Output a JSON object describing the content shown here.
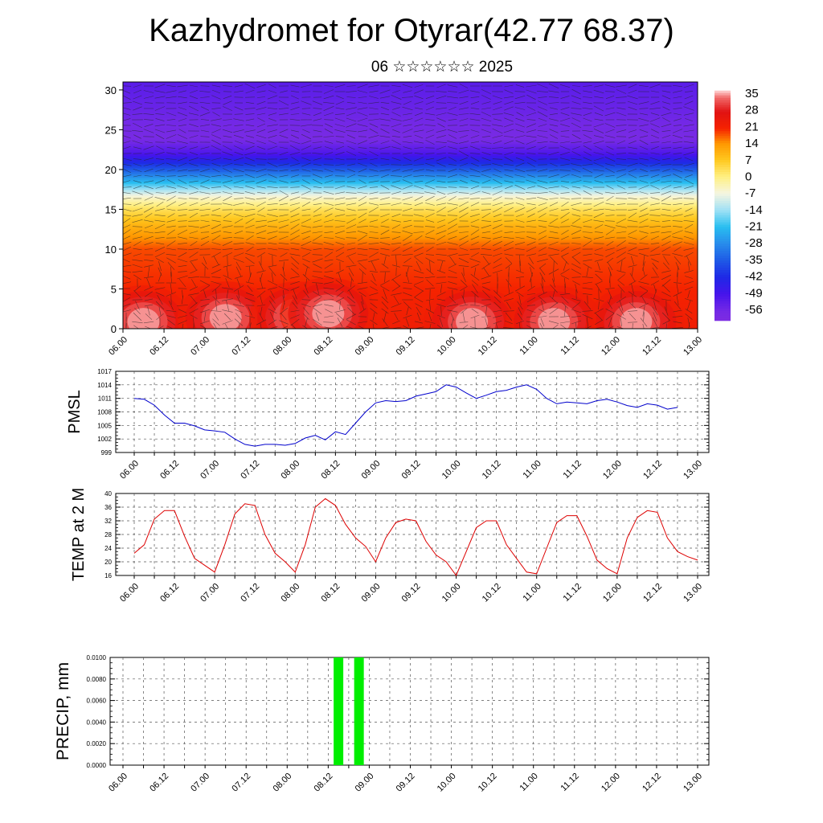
{
  "header": {
    "title": "Kazhydromet for Otyrar(42.77 68.37)",
    "subtitle": "06 ☆☆☆☆☆☆ 2025"
  },
  "colors": {
    "pmsl_line": "#0000cc",
    "temp_line": "#dd0000",
    "precip_bar": "#00ee00"
  },
  "chart_data": [
    {
      "type": "heatmap",
      "title": "",
      "xlabel": "",
      "ylabel": "",
      "x_ticks": [
        "06.00",
        "06.12",
        "07.00",
        "07.12",
        "08.00",
        "08.12",
        "09.00",
        "09.12",
        "10.00",
        "10.12",
        "11.00",
        "11.12",
        "12.00",
        "12.12",
        "13.00"
      ],
      "y_ticks": [
        0,
        5,
        10,
        15,
        20,
        25,
        30
      ],
      "ylim": [
        0,
        31
      ],
      "overlay": "wind barbs",
      "colorbar": {
        "labels": [
          "35",
          "28",
          "21",
          "14",
          "7",
          "0",
          "-7",
          "-14",
          "-21",
          "-28",
          "-35",
          "-42",
          "-49",
          "-56"
        ],
        "range": [
          -60,
          36
        ]
      },
      "profile": {
        "z": [
          0,
          5,
          10,
          13,
          15,
          16.5,
          18,
          20,
          22,
          24,
          27,
          31
        ],
        "t": [
          22,
          20,
          18,
          10,
          3,
          -5,
          -18,
          -35,
          -50,
          -58,
          -55,
          -52
        ]
      },
      "warm_spots": [
        {
          "x": "06.06",
          "z": 1.5
        },
        {
          "x": "07.06",
          "z": 2
        },
        {
          "x": "08.03",
          "z": 2
        },
        {
          "x": "08.12",
          "z": 2.5
        },
        {
          "x": "10.06",
          "z": 1.5
        },
        {
          "x": "11.06",
          "z": 1.5
        },
        {
          "x": "12.06",
          "z": 1.5
        }
      ]
    },
    {
      "type": "line",
      "title": "",
      "ylabel": "PMSL",
      "xlabel": "",
      "x_ticks": [
        "06.00",
        "06.12",
        "07.00",
        "07.12",
        "08.00",
        "08.12",
        "09.00",
        "09.12",
        "10.00",
        "10.12",
        "11.00",
        "11.12",
        "12.00",
        "12.12",
        "13.00"
      ],
      "y_ticks": [
        999,
        1002,
        1005,
        1008,
        1011,
        1014,
        1017
      ],
      "ylim": [
        999,
        1017
      ],
      "grid": true,
      "series": [
        {
          "values": [
            1011.0,
            1010.8,
            1009.5,
            1007.3,
            1005.5,
            1005.5,
            1004.9,
            1004.0,
            1003.8,
            1003.5,
            1002.0,
            1000.8,
            1000.4,
            1000.8,
            1000.8,
            1000.6,
            1001.0,
            1002.2,
            1002.8,
            1001.8,
            1003.6,
            1003.0,
            1005.5,
            1008.0,
            1010.0,
            1010.5,
            1010.3,
            1010.5,
            1011.5,
            1012.0,
            1012.5,
            1014.0,
            1013.5,
            1012.2,
            1011.0,
            1011.7,
            1012.5,
            1012.8,
            1013.5,
            1014.0,
            1013.0,
            1011.0,
            1009.8,
            1010.2,
            1010.0,
            1009.8,
            1010.5,
            1010.8,
            1010.2,
            1009.4,
            1009.0,
            1009.8,
            1009.5,
            1008.6,
            1009.0
          ]
        }
      ]
    },
    {
      "type": "line",
      "title": "",
      "ylabel": "TEMP at 2 M",
      "xlabel": "",
      "x_ticks": [
        "06.00",
        "06.12",
        "07.00",
        "07.12",
        "08.00",
        "08.12",
        "09.00",
        "09.12",
        "10.00",
        "10.12",
        "11.00",
        "11.12",
        "12.00",
        "12.12",
        "13.00"
      ],
      "y_ticks": [
        16,
        20,
        24,
        28,
        32,
        36,
        40
      ],
      "ylim": [
        16,
        40
      ],
      "grid": true,
      "series": [
        {
          "values": [
            22.5,
            25.0,
            32.5,
            35.0,
            35.0,
            27.5,
            21.0,
            19.0,
            17.0,
            25.0,
            34.0,
            37.0,
            36.5,
            28.0,
            22.5,
            20.0,
            17.0,
            25.0,
            36.0,
            38.5,
            36.5,
            31.0,
            27.0,
            24.5,
            20.0,
            27.0,
            31.5,
            32.5,
            32.0,
            26.0,
            22.0,
            20.0,
            16.0,
            23.0,
            30.0,
            32.0,
            32.0,
            25.0,
            21.0,
            17.0,
            16.5,
            24.0,
            31.5,
            33.5,
            33.5,
            27.5,
            20.5,
            18.0,
            16.5,
            27.0,
            33.0,
            35.0,
            34.5,
            27.0,
            23.0,
            21.5,
            20.5
          ]
        }
      ]
    },
    {
      "type": "bar",
      "title": "",
      "ylabel": "PRECIP, mm",
      "xlabel": "",
      "x_ticks": [
        "06.00",
        "06.12",
        "07.00",
        "07.12",
        "08.00",
        "08.12",
        "09.00",
        "09.12",
        "10.00",
        "10.12",
        "11.00",
        "11.12",
        "12.00",
        "12.12",
        "13.00"
      ],
      "y_ticks": [
        "0.0000",
        "0.0020",
        "0.0040",
        "0.0060",
        "0.0080",
        "0.0100"
      ],
      "ylim": [
        0,
        0.01
      ],
      "grid": true,
      "bars": [
        {
          "x": "08.15",
          "value": 0.01
        },
        {
          "x": "08.21",
          "value": 0.01
        }
      ]
    }
  ]
}
